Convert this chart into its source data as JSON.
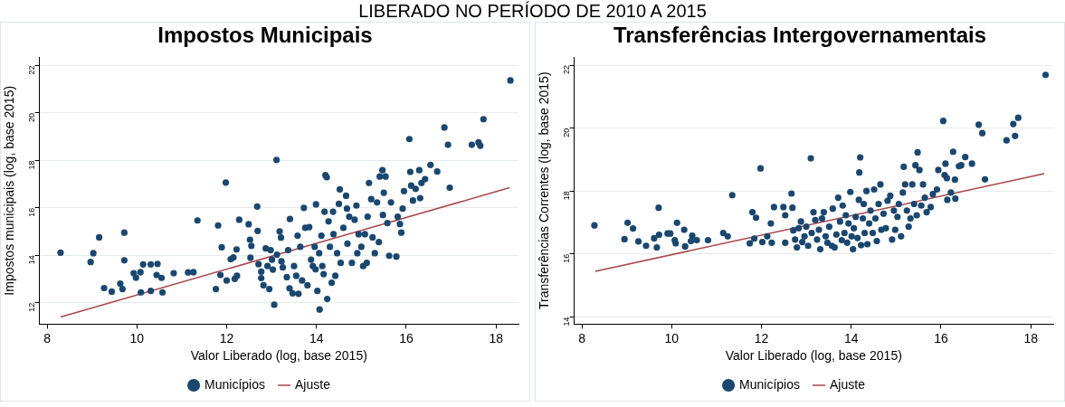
{
  "chart_data": [
    {
      "type": "scatter",
      "title": "Impostos Municipais",
      "xlabel": "Valor Liberado (log, base 2015)",
      "ylabel": "Impostos municipais (log, base 2015)",
      "annotations": [
        "LIBERADO NO PERÍODO DE 2010 A 2015"
      ],
      "xlim": [
        7.83,
        18.5
      ],
      "xticks": [
        8,
        10,
        12,
        14,
        16,
        18
      ],
      "ylim": [
        11.1,
        22.36
      ],
      "yticks": [
        12,
        14,
        16,
        18,
        20,
        22
      ],
      "grid": "y",
      "legend": "bottom",
      "marker": "circle",
      "series": [
        {
          "name": "Municípios",
          "type": "scatter",
          "color": "#1a476f",
          "x": [
            8.3,
            8.97,
            9.03,
            9.16,
            9.27,
            9.44,
            9.63,
            9.68,
            9.72,
            9.72,
            9.93,
            9.98,
            10.08,
            10.09,
            10.14,
            10.31,
            10.31,
            10.44,
            10.46,
            10.55,
            10.57,
            10.82,
            11.14,
            11.26,
            11.35,
            11.76,
            11.81,
            11.86,
            11.89,
            11.98,
            12.0,
            12.09,
            12.15,
            12.18,
            12.22,
            12.23,
            12.28,
            12.49,
            12.52,
            12.55,
            12.53,
            12.68,
            12.69,
            12.71,
            12.77,
            12.77,
            12.82,
            12.87,
            12.91,
            12.95,
            12.98,
            13.01,
            13.03,
            13.06,
            13.11,
            13.12,
            13.18,
            13.21,
            13.22,
            13.25,
            13.34,
            13.37,
            13.41,
            13.4,
            13.47,
            13.5,
            13.55,
            13.58,
            13.6,
            13.64,
            13.68,
            13.72,
            13.75,
            13.8,
            13.84,
            13.88,
            13.92,
            13.96,
            13.98,
            13.99,
            14.02,
            14.06,
            14.07,
            14.11,
            14.13,
            14.16,
            14.18,
            14.2,
            14.23,
            14.24,
            14.27,
            14.3,
            14.34,
            14.37,
            14.38,
            14.42,
            14.46,
            14.5,
            14.52,
            14.54,
            14.6,
            14.66,
            14.68,
            14.69,
            14.73,
            14.79,
            14.85,
            14.89,
            14.91,
            14.94,
            15.0,
            15.04,
            15.08,
            15.12,
            15.14,
            15.17,
            15.22,
            15.25,
            15.3,
            15.35,
            15.39,
            15.41,
            15.47,
            15.48,
            15.5,
            15.54,
            15.58,
            15.62,
            15.66,
            15.78,
            15.81,
            15.86,
            15.89,
            15.92,
            15.95,
            16.07,
            16.09,
            16.11,
            16.15,
            16.21,
            16.29,
            16.31,
            16.34,
            16.42,
            16.54,
            16.69,
            16.85,
            16.93,
            16.97,
            17.46,
            17.61,
            17.65,
            17.72,
            18.32
          ],
          "values": [
            14.11,
            13.72,
            14.09,
            14.76,
            12.62,
            12.47,
            12.81,
            12.58,
            14.96,
            13.79,
            13.25,
            13.06,
            13.29,
            12.44,
            13.62,
            13.62,
            12.5,
            13.17,
            13.64,
            13.05,
            12.44,
            13.25,
            13.28,
            13.29,
            15.47,
            12.58,
            15.26,
            13.17,
            14.34,
            17.07,
            12.94,
            13.84,
            13.91,
            13.01,
            14.25,
            13.14,
            15.5,
            15.31,
            14.66,
            14.4,
            13.9,
            16.06,
            15.03,
            13.63,
            13.31,
            13.04,
            12.74,
            14.29,
            13.55,
            12.58,
            14.22,
            13.82,
            13.4,
            11.92,
            18.02,
            14.03,
            15.01,
            14.75,
            13.75,
            13.49,
            13.08,
            14.22,
            15.53,
            12.61,
            12.4,
            13.55,
            13.14,
            14.83,
            12.38,
            14.36,
            12.94,
            16.0,
            15.16,
            12.74,
            15.19,
            13.82,
            13.55,
            14.36,
            13.41,
            16.15,
            12.5,
            14.09,
            11.72,
            14.83,
            13.55,
            13.21,
            15.84,
            17.38,
            17.29,
            12.16,
            15.43,
            14.36,
            12.85,
            15.84,
            14.89,
            13.14,
            14.09,
            16.17,
            16.78,
            13.68,
            15.16,
            16.51,
            15.97,
            14.49,
            15.63,
            13.68,
            15.5,
            16.1,
            14.09,
            14.89,
            14.36,
            13.55,
            14.89,
            13.68,
            15.63,
            17.05,
            16.37,
            14.76,
            14.09,
            16.23,
            14.56,
            17.32,
            17.59,
            15.7,
            16.64,
            17.32,
            15.36,
            13.98,
            16.23,
            13.95,
            15.63,
            15.32,
            14.96,
            15.97,
            16.71,
            18.9,
            17.52,
            16.94,
            16.31,
            16.8,
            17.59,
            16.41,
            17.05,
            17.21,
            17.81,
            17.53,
            19.39,
            18.66,
            16.85,
            18.66,
            18.76,
            18.62,
            19.74,
            21.37
          ]
        },
        {
          "name": "Ajuste",
          "type": "line",
          "color": "#a8464b",
          "marker": "none",
          "x": [
            8.3,
            18.3
          ],
          "values": [
            11.4,
            16.85
          ]
        }
      ]
    },
    {
      "type": "scatter",
      "title": "Transferências Intergovernamentais",
      "xlabel": "Valor Liberado (log, base 2015)",
      "ylabel": "Transferências Correntes (log, base 2015)",
      "xlim": [
        7.83,
        18.5
      ],
      "xticks": [
        8,
        10,
        12,
        14,
        16,
        18
      ],
      "ylim": [
        13.77,
        22.26
      ],
      "yticks": [
        14,
        16,
        18,
        20,
        22
      ],
      "grid": "y",
      "legend": "bottom",
      "marker": "circle",
      "series": [
        {
          "name": "Municípios",
          "type": "scatter",
          "color": "#1a476f",
          "x": [
            8.28,
            8.95,
            9.02,
            9.14,
            9.26,
            9.43,
            9.61,
            9.67,
            9.71,
            9.72,
            9.91,
            9.97,
            10.07,
            10.09,
            10.12,
            10.28,
            10.3,
            10.43,
            10.46,
            10.56,
            10.81,
            11.15,
            11.25,
            11.35,
            11.74,
            11.8,
            11.84,
            11.88,
            11.98,
            12.02,
            12.13,
            12.21,
            12.23,
            12.28,
            12.49,
            12.53,
            12.53,
            12.67,
            12.69,
            12.71,
            12.75,
            12.79,
            12.83,
            12.88,
            12.91,
            12.96,
            13.0,
            13.04,
            13.1,
            13.12,
            13.16,
            13.2,
            13.24,
            13.28,
            13.31,
            13.35,
            13.39,
            13.43,
            13.47,
            13.51,
            13.57,
            13.59,
            13.63,
            13.67,
            13.71,
            13.75,
            13.79,
            13.81,
            13.85,
            13.88,
            13.91,
            13.94,
            13.98,
            14.01,
            14.04,
            14.06,
            14.1,
            14.14,
            14.17,
            14.18,
            14.2,
            14.22,
            14.26,
            14.28,
            14.3,
            14.34,
            14.36,
            14.4,
            14.43,
            14.48,
            14.51,
            14.54,
            14.57,
            14.61,
            14.65,
            14.67,
            14.72,
            14.77,
            14.81,
            14.87,
            14.91,
            14.95,
            14.98,
            15.03,
            15.06,
            15.11,
            15.15,
            15.17,
            15.2,
            15.24,
            15.28,
            15.32,
            15.36,
            15.4,
            15.43,
            15.46,
            15.48,
            15.52,
            15.56,
            15.6,
            15.64,
            15.68,
            15.77,
            15.82,
            15.91,
            15.94,
            16.05,
            16.08,
            16.1,
            16.13,
            16.14,
            16.22,
            16.27,
            16.31,
            16.32,
            16.4,
            16.45,
            16.54,
            16.69,
            16.84,
            16.92,
            16.98,
            17.46,
            17.61,
            17.65,
            17.72,
            18.33
          ],
          "values": [
            16.91,
            16.47,
            16.99,
            16.81,
            16.4,
            16.26,
            16.5,
            16.21,
            17.47,
            16.61,
            16.65,
            16.65,
            16.44,
            16.34,
            16.99,
            16.77,
            16.24,
            16.41,
            16.58,
            16.44,
            16.44,
            16.67,
            16.56,
            17.87,
            16.34,
            17.33,
            16.49,
            17.15,
            18.72,
            16.38,
            16.56,
            16.97,
            16.36,
            17.49,
            17.49,
            17.23,
            16.36,
            17.92,
            17.47,
            16.75,
            16.46,
            16.21,
            16.82,
            17.03,
            16.38,
            16.56,
            16.87,
            16.26,
            19.04,
            16.67,
            17.33,
            17.08,
            16.46,
            16.77,
            16.15,
            17.13,
            17.33,
            16.56,
            16.36,
            16.87,
            16.26,
            17.44,
            16.21,
            16.62,
            17.79,
            17.03,
            16.44,
            17.54,
            16.67,
            17.23,
            16.36,
            16.97,
            17.97,
            16.56,
            16.15,
            16.82,
            17.18,
            16.51,
            17.72,
            18.59,
            19.07,
            16.28,
            17.13,
            17.59,
            16.67,
            18.0,
            16.31,
            16.97,
            17.38,
            16.67,
            18.05,
            17.13,
            16.41,
            17.59,
            18.21,
            16.77,
            17.28,
            16.82,
            17.69,
            17.85,
            16.46,
            17.38,
            16.77,
            17.18,
            17.59,
            16.56,
            17.95,
            18.77,
            18.21,
            17.38,
            16.87,
            17.13,
            18.21,
            17.59,
            18.82,
            17.23,
            19.23,
            18.67,
            17.54,
            18.21,
            17.79,
            17.33,
            17.49,
            17.9,
            18.05,
            18.67,
            20.23,
            18.51,
            18.87,
            18.41,
            17.72,
            17.95,
            19.25,
            18.36,
            17.76,
            18.79,
            18.82,
            19.08,
            18.87,
            20.11,
            19.84,
            18.37,
            19.61,
            20.13,
            19.75,
            20.33,
            21.69
          ]
        },
        {
          "name": "Ajuste",
          "type": "line",
          "color": "#a8464b",
          "marker": "none",
          "x": [
            8.3,
            18.3
          ],
          "values": [
            15.45,
            18.55
          ]
        }
      ]
    }
  ]
}
